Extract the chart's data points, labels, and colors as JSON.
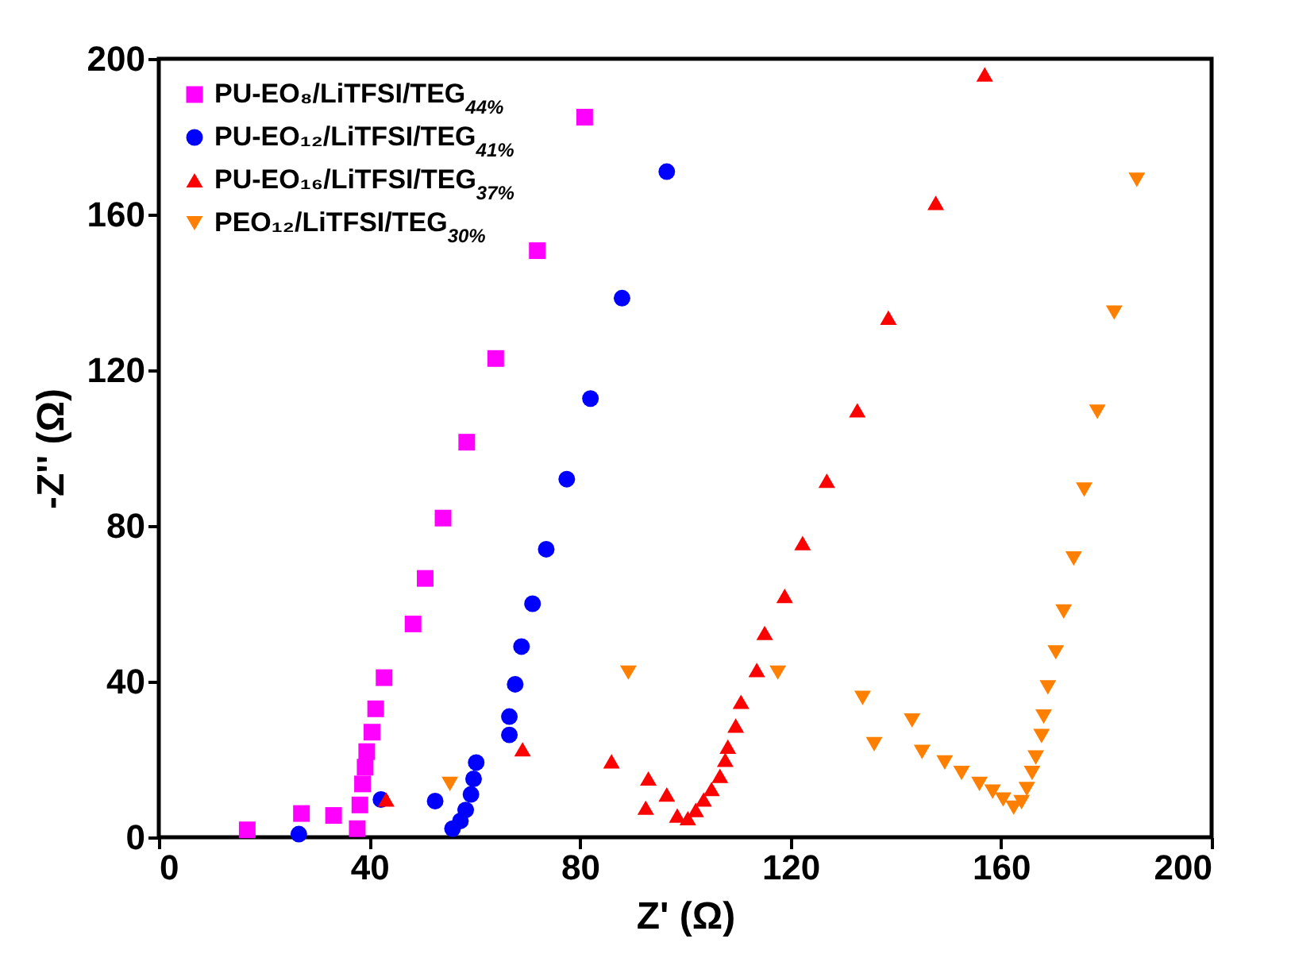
{
  "chart_data": {
    "type": "scatter",
    "xlabel": "Z' (Ω)",
    "ylabel": "-Z'' (Ω)",
    "xlim": [
      0,
      200
    ],
    "xticks": [
      0,
      40,
      80,
      120,
      160,
      200
    ],
    "ylim": [
      0,
      200
    ],
    "yticks": [
      0,
      40,
      80,
      120,
      160,
      200
    ],
    "grid": false,
    "legend": "top left",
    "series": [
      {
        "name": "PU-EO₈/LiTFSI/TEG$_{44%}$",
        "color": "#ff00ff",
        "marker": "square",
        "x": [
          16.8,
          27.1,
          33.2,
          37.7,
          38.2,
          38.7,
          39.2,
          39.5,
          40.5,
          41.2,
          42.8,
          48.3,
          50.6,
          54,
          58.5,
          64,
          71.9,
          80.9
        ],
        "values": [
          1.9,
          6.1,
          5.6,
          2.2,
          8.3,
          13.7,
          18,
          22,
          27,
          33,
          41,
          54.8,
          66.5,
          82,
          101.5,
          123,
          150.7,
          185
        ]
      },
      {
        "name": "PU-EO₁₂/LiTFSI/TEG$_{41%}$",
        "color": "#0000ff",
        "marker": "circle",
        "x": [
          26.6,
          42.2,
          52.5,
          55.8,
          57.3,
          58.3,
          59.3,
          59.8,
          60.3,
          66.6,
          66.6,
          67.7,
          68.9,
          71,
          73.6,
          77.5,
          82,
          88,
          96.5
        ],
        "values": [
          0.8,
          9.7,
          9.3,
          2.2,
          4.2,
          7,
          11,
          15,
          19.2,
          26.3,
          31,
          39.3,
          49,
          60,
          74,
          92,
          112.7,
          138.5,
          171
        ]
      },
      {
        "name": "PU-EO₁₆/LiTFSI/TEG$_{37%}$",
        "color": "#ff0000",
        "marker": "triangle",
        "x": [
          43.2,
          69.1,
          86,
          93,
          92.5,
          96.5,
          98.5,
          100.5,
          102,
          103.5,
          105,
          106.6,
          107.6,
          108.1,
          109.6,
          110.6,
          113.6,
          115.1,
          118.9,
          122.3,
          126.9,
          132.7,
          138.6,
          147.6,
          156.9
        ],
        "values": [
          9.7,
          22.6,
          19.5,
          15.1,
          7.6,
          11,
          5.6,
          4.9,
          7,
          9.7,
          12.4,
          15.8,
          19.9,
          23.3,
          28.7,
          34.8,
          43,
          52.5,
          62,
          75.6,
          91.6,
          109.7,
          133.5,
          163,
          196
        ]
      },
      {
        "name": "PEO₁₂/LiTFSI/TEG$_{30%}$",
        "color": "#ff8000",
        "marker": "triangle-down",
        "x": [
          55.3,
          89.2,
          117.6,
          133.7,
          135.9,
          143.1,
          145,
          149.3,
          152.5,
          155.9,
          158.4,
          160.4,
          162.4,
          163.9,
          164.9,
          165.9,
          166.6,
          167.7,
          168.1,
          168.9,
          170.4,
          171.9,
          173.8,
          175.8,
          178.3,
          181.5,
          185.8
        ],
        "values": [
          13.7,
          42.3,
          42.3,
          35.8,
          23.9,
          30,
          21.9,
          19.2,
          16.5,
          13.7,
          11.7,
          9.7,
          7.6,
          9,
          12.4,
          16.5,
          20.5,
          26,
          31,
          38.5,
          47.5,
          58,
          71.6,
          89.3,
          109.3,
          134.8,
          168.9
        ]
      }
    ]
  }
}
